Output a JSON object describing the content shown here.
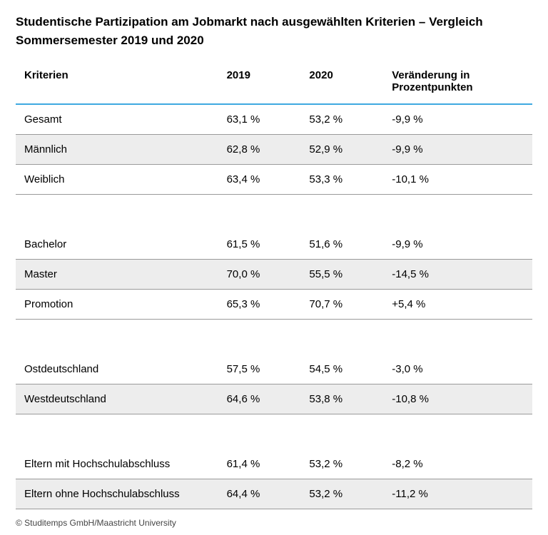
{
  "title": "Studentische Partizipation am Jobmarkt nach ausgewählten Kriterien – Vergleich Sommersemester 2019 und 2020",
  "columns": [
    "Kriterien",
    "2019",
    "2020",
    "Veränderung\nin Prozentpunkten"
  ],
  "colors": {
    "header_rule": "#3fa9e0",
    "row_rule": "#9a9a9a",
    "row_zebra": "#ededed",
    "background": "#ffffff",
    "text": "#000000"
  },
  "groups": [
    {
      "rows": [
        {
          "label": "Gesamt",
          "y2019": "63,1 %",
          "y2020": "53,2 %",
          "change": "-9,9 %"
        },
        {
          "label": "Männlich",
          "y2019": "62,8 %",
          "y2020": "52,9 %",
          "change": "-9,9 %"
        },
        {
          "label": "Weiblich",
          "y2019": "63,4 %",
          "y2020": "53,3 %",
          "change": "-10,1 %"
        }
      ]
    },
    {
      "rows": [
        {
          "label": "Bachelor",
          "y2019": "61,5 %",
          "y2020": "51,6 %",
          "change": "-9,9 %"
        },
        {
          "label": "Master",
          "y2019": "70,0 %",
          "y2020": "55,5 %",
          "change": "-14,5 %"
        },
        {
          "label": "Promotion",
          "y2019": "65,3 %",
          "y2020": "70,7 %",
          "change": "+5,4 %"
        }
      ]
    },
    {
      "rows": [
        {
          "label": "Ostdeutschland",
          "y2019": "57,5 %",
          "y2020": "54,5 %",
          "change": "-3,0 %"
        },
        {
          "label": "Westdeutschland",
          "y2019": "64,6 %",
          "y2020": "53,8 %",
          "change": "-10,8 %"
        }
      ]
    },
    {
      "rows": [
        {
          "label": "Eltern mit Hochschulabschluss",
          "y2019": "61,4 %",
          "y2020": "53,2 %",
          "change": "-8,2 %"
        },
        {
          "label": "Eltern ohne Hochschulabschluss",
          "y2019": "64,4 %",
          "y2020": "53,2 %",
          "change": "-11,2 %"
        }
      ]
    }
  ],
  "footer": "© Studitemps GmbH/Maastricht University"
}
